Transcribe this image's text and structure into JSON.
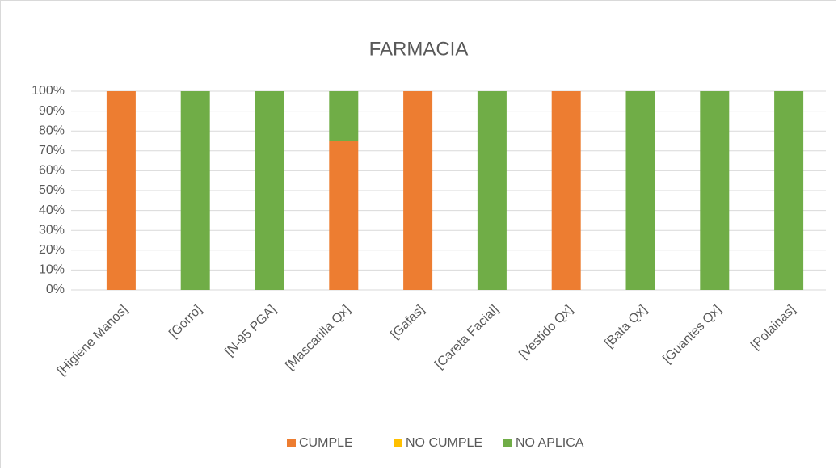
{
  "chart_data": {
    "type": "stacked_bar",
    "title": "FARMACIA",
    "categories": [
      "[Higiene Manos]",
      "[Gorro]",
      "[N-95 PGA]",
      "[Mascarilla Qx]",
      "[Gafas]",
      "[Careta Facial]",
      "[Vestido Qx]",
      "[Bata Qx]",
      "[Guantes Qx]",
      "[Polainas]"
    ],
    "series": [
      {
        "name": "CUMPLE",
        "color": "#ed7d31",
        "values": [
          100,
          0,
          0,
          75,
          100,
          0,
          100,
          0,
          0,
          0
        ]
      },
      {
        "name": "NO CUMPLE",
        "color": "#ffc000",
        "values": [
          0,
          0,
          0,
          0,
          0,
          0,
          0,
          0,
          0,
          0
        ]
      },
      {
        "name": "NO APLICA",
        "color": "#70ad47",
        "values": [
          0,
          100,
          100,
          25,
          0,
          100,
          0,
          100,
          100,
          100
        ]
      }
    ],
    "ylim": [
      0,
      100
    ],
    "yticks": [
      {
        "value": 0,
        "label": "0%"
      },
      {
        "value": 10,
        "label": "10%"
      },
      {
        "value": 20,
        "label": "20%"
      },
      {
        "value": 30,
        "label": "30%"
      },
      {
        "value": 40,
        "label": "40%"
      },
      {
        "value": 50,
        "label": "50%"
      },
      {
        "value": 60,
        "label": "60%"
      },
      {
        "value": 70,
        "label": "70%"
      },
      {
        "value": 80,
        "label": "80%"
      },
      {
        "value": 90,
        "label": "90%"
      },
      {
        "value": 100,
        "label": "100%"
      }
    ],
    "grid": true,
    "legend": "bottom"
  }
}
